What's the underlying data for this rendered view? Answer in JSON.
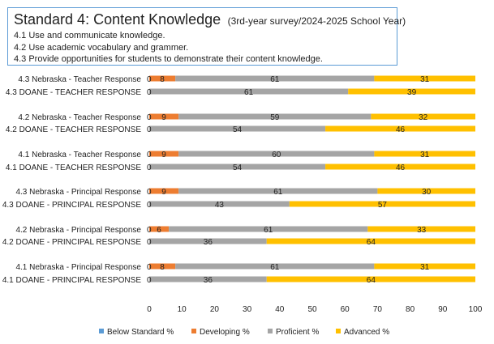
{
  "header": {
    "title": "Standard 4: Content Knowledge",
    "subtitle": "(3rd-year survey/2024-2025 School Year)",
    "lines": [
      "4.1 Use and communicate knowledge.",
      "4.2 Use academic vocabulary and grammer.",
      "4.3 Provide opportunities for students to demonstrate their content knowledge."
    ]
  },
  "chart_data": {
    "type": "bar",
    "orientation": "horizontal",
    "stacked": true,
    "xlim": [
      0,
      100
    ],
    "xticks": [
      0,
      10,
      20,
      30,
      40,
      50,
      60,
      70,
      80,
      90,
      100
    ],
    "grid": false,
    "legend_position": "bottom",
    "categories": [
      "4.3 Nebraska - Teacher Response",
      "4.3 DOANE - TEACHER RESPONSE",
      "4.2 Nebraska - Teacher Response",
      "4.2 DOANE - TEACHER RESPONSE",
      "4.1 Nebraska - Teacher Response",
      "4.1 DOANE - TEACHER RESPONSE",
      "4.3 Nebraska - Principal Response",
      "4.3  DOANE  - PRINCIPAL RESPONSE",
      "4.2 Nebraska - Principal Response",
      "4.2  DOANE - PRINCIPAL RESPONSE",
      "4.1 Nebraska - Principal Response",
      "4.1 DOANE  - PRINCIPAL RESPONSE"
    ],
    "series": [
      {
        "name": "Below Standard %",
        "color": "#5b9bd5",
        "values": [
          0,
          0,
          0,
          0,
          0,
          0,
          0,
          0,
          0,
          0,
          0,
          0
        ]
      },
      {
        "name": "Developing %",
        "color": "#ed7d31",
        "values": [
          8,
          0,
          9,
          0,
          9,
          0,
          9,
          0,
          6,
          0,
          8,
          0
        ]
      },
      {
        "name": "Proficient %",
        "color": "#a5a5a5",
        "values": [
          61,
          61,
          59,
          54,
          60,
          54,
          61,
          43,
          61,
          36,
          61,
          36
        ]
      },
      {
        "name": "Advanced %",
        "color": "#ffc000",
        "values": [
          31,
          39,
          32,
          46,
          31,
          46,
          30,
          57,
          33,
          64,
          31,
          64
        ]
      }
    ]
  }
}
